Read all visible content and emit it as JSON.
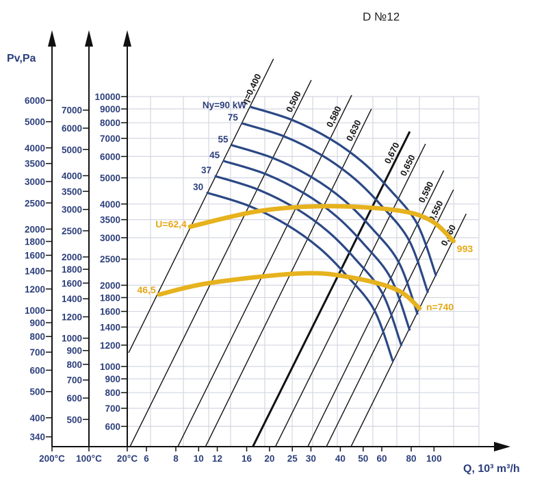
{
  "chart_data": {
    "type": "line",
    "title": "D №12",
    "ylabel": "Pv,Pa",
    "xlabel": "Q, 10³ m³/h",
    "x_scale": "log",
    "y_scale": "log",
    "grid": true,
    "xlim": [
      5,
      155
    ],
    "ylim": [
      505,
      10000
    ],
    "x_axis_origin_label": "20°C",
    "x_ticks": [
      6,
      8,
      10,
      12,
      16,
      20,
      25,
      30,
      40,
      50,
      60,
      80,
      100
    ],
    "y_axes": [
      {
        "temperature": 200,
        "label": "200°C",
        "ticks": [
          6000,
          5000,
          4000,
          3500,
          3000,
          2500,
          2000,
          1800,
          1600,
          1400,
          1200,
          1000,
          900,
          800,
          700,
          600,
          500,
          400,
          340
        ]
      },
      {
        "temperature": 100,
        "label": "100°C",
        "ticks": [
          7000,
          6000,
          5000,
          4000,
          3500,
          3000,
          2500,
          2000,
          1800,
          1600,
          1400,
          1200,
          1000,
          900,
          800,
          700,
          600,
          500
        ]
      },
      {
        "temperature": 20,
        "label": "20°C",
        "ticks": [
          10000,
          9000,
          8000,
          7000,
          6000,
          5000,
          4000,
          3500,
          3000,
          2500,
          2000,
          1800,
          1600,
          1400,
          1200,
          1000,
          900,
          800,
          700,
          600
        ]
      }
    ],
    "power_curves": [
      {
        "label": "Ny=90 kW",
        "points": [
          [
            16.6,
            9160
          ],
          [
            24.9,
            8200
          ],
          [
            36.3,
            6960
          ],
          [
            49.8,
            5710
          ],
          [
            65,
            4520
          ],
          [
            84.9,
            3370
          ],
          [
            101.8,
            2180
          ]
        ]
      },
      {
        "label": "75",
        "points": [
          [
            15.3,
            7960
          ],
          [
            23.0,
            7130
          ],
          [
            33.5,
            6050
          ],
          [
            46.0,
            4960
          ],
          [
            60.0,
            3930
          ],
          [
            78.4,
            2930
          ],
          [
            94.0,
            1890
          ]
        ]
      },
      {
        "label": "55",
        "points": [
          [
            13.9,
            6600
          ],
          [
            20.8,
            5910
          ],
          [
            30.3,
            5020
          ],
          [
            41.6,
            4120
          ],
          [
            54.3,
            3260
          ],
          [
            70.9,
            2430
          ],
          [
            85.0,
            1570
          ]
        ]
      },
      {
        "label": "45",
        "points": [
          [
            12.8,
            5770
          ],
          [
            19.2,
            5170
          ],
          [
            28.1,
            4380
          ],
          [
            38.5,
            3600
          ],
          [
            50.2,
            2850
          ],
          [
            65.6,
            2120
          ],
          [
            78.7,
            1370
          ]
        ]
      },
      {
        "label": "37",
        "points": [
          [
            11.8,
            5070
          ],
          [
            17.8,
            4530
          ],
          [
            25.9,
            3850
          ],
          [
            35.5,
            3160
          ],
          [
            46.3,
            2500
          ],
          [
            60.5,
            1860
          ],
          [
            72.6,
            1200
          ]
        ]
      },
      {
        "label": "30",
        "points": [
          [
            10.9,
            4400
          ],
          [
            16.3,
            3940
          ],
          [
            23.8,
            3340
          ],
          [
            32.7,
            2740
          ],
          [
            42.6,
            2170
          ],
          [
            55.7,
            1620
          ],
          [
            66.8,
            1050
          ]
        ]
      }
    ],
    "speed_curves": [
      {
        "start_label": "U=62,4",
        "end_label": "993",
        "points": [
          [
            9.2,
            3296
          ],
          [
            18.2,
            3770
          ],
          [
            35.6,
            3926
          ],
          [
            69.5,
            3790
          ],
          [
            97.1,
            3473
          ],
          [
            121,
            2913
          ]
        ]
      },
      {
        "start_label": "46,5",
        "end_label": "n=740",
        "points": [
          [
            6.8,
            1848
          ],
          [
            11.2,
            2040
          ],
          [
            27.2,
            2213
          ],
          [
            44.4,
            2138
          ],
          [
            69.5,
            1924
          ],
          [
            86.7,
            1643
          ]
        ]
      }
    ],
    "efficiency_lines": [
      {
        "label": "η=0,400",
        "from": [
          5.04,
          1124
        ],
        "to": [
          20.8,
          13800
        ],
        "bold": false
      },
      {
        "label": "0,500",
        "from": [
          5.11,
          505
        ],
        "to": [
          30.1,
          11510
        ],
        "bold": false
      },
      {
        "label": "0,580",
        "from": [
          8.16,
          505
        ],
        "to": [
          44.7,
          10120
        ],
        "bold": false
      },
      {
        "label": "0,630",
        "from": [
          10.7,
          505
        ],
        "to": [
          54.2,
          9000
        ],
        "bold": false
      },
      {
        "label": "0,670",
        "from": [
          17.0,
          505
        ],
        "to": [
          78.9,
          7420
        ],
        "bold": true
      },
      {
        "label": "0,650",
        "from": [
          21.2,
          505
        ],
        "to": [
          92.0,
          6680
        ],
        "bold": false
      },
      {
        "label": "0,590",
        "from": [
          29.1,
          505
        ],
        "to": [
          110,
          5320
        ],
        "bold": false
      },
      {
        "label": "0,550",
        "from": [
          34.9,
          505
        ],
        "to": [
          121,
          4520
        ],
        "bold": false
      },
      {
        "label": "0,460",
        "from": [
          44.4,
          505
        ],
        "to": [
          137,
          3680
        ],
        "bold": false
      }
    ],
    "colors": {
      "power": "#2b4885",
      "speed": "#e6b21e",
      "axis_text": "#2c3f7c",
      "grid": "#d4d6e2",
      "efficiency": "#111111"
    }
  }
}
